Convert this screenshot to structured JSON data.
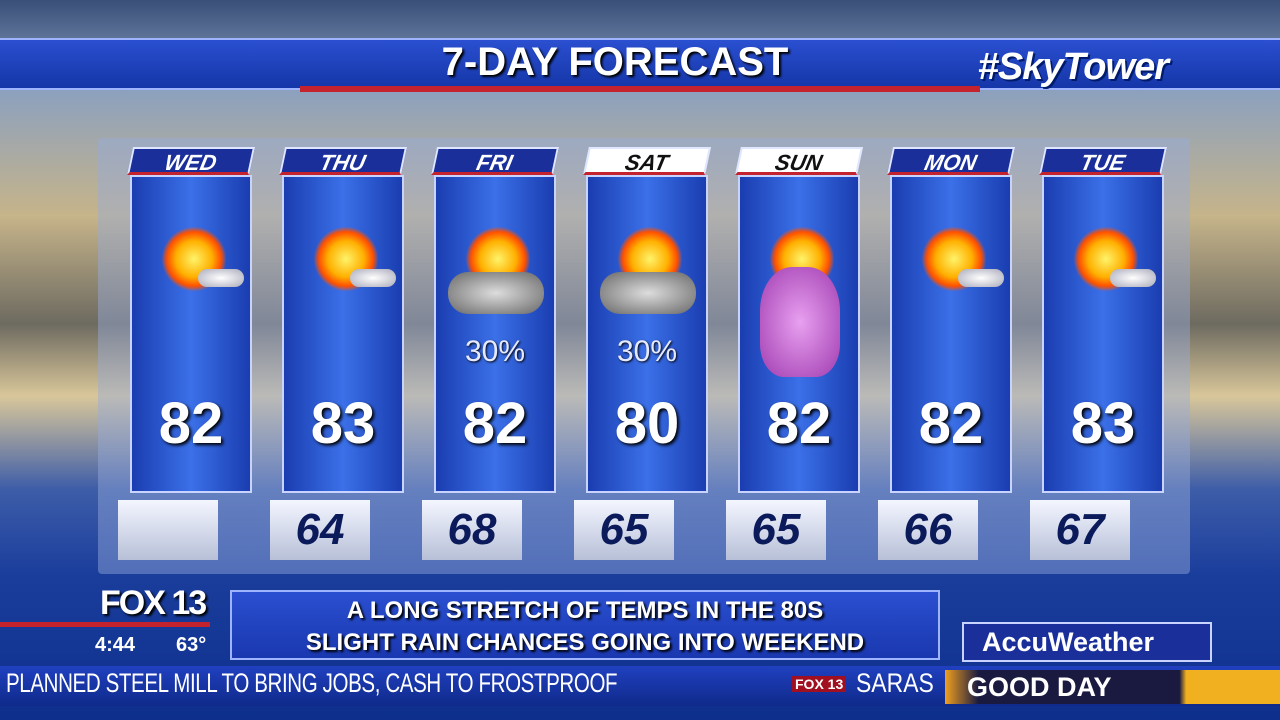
{
  "header": {
    "title": "7-DAY FORECAST",
    "hashtag": "#SkyTower"
  },
  "forecast": [
    {
      "day": "WED",
      "high": "82",
      "low": "",
      "pop": "",
      "icon": "sun-cloud-icon",
      "weekend": false
    },
    {
      "day": "THU",
      "high": "83",
      "low": "64",
      "pop": "",
      "icon": "sun-cloud-icon",
      "weekend": false
    },
    {
      "day": "FRI",
      "high": "82",
      "low": "68",
      "pop": "30%",
      "icon": "rain-cloud-sun-icon",
      "weekend": false
    },
    {
      "day": "SAT",
      "high": "80",
      "low": "65",
      "pop": "30%",
      "icon": "rain-cloud-sun-icon",
      "weekend": true
    },
    {
      "day": "SUN",
      "high": "82",
      "low": "65",
      "pop": "",
      "icon": "easter-bunny-icon",
      "weekend": true
    },
    {
      "day": "MON",
      "high": "82",
      "low": "66",
      "pop": "",
      "icon": "sun-cloud-icon",
      "weekend": false
    },
    {
      "day": "TUE",
      "high": "83",
      "low": "67",
      "pop": "",
      "icon": "sun-cloud-icon",
      "weekend": false
    }
  ],
  "station": {
    "logo": "FOX 13",
    "time": "4:44",
    "temp": "63°"
  },
  "message": {
    "line1": "A LONG STRETCH OF TEMPS IN THE 80S",
    "line2": "SLIGHT RAIN CHANCES GOING INTO WEEKEND"
  },
  "sponsor": "AccuWeather",
  "ticker": {
    "headline": "PLANNED STEEL MILL TO BRING JOBS, CASH TO FROSTPROOF",
    "logo": "FOX 13",
    "next": "SARAS",
    "show": "GOOD DAY"
  },
  "colors": {
    "accent_red": "#c4222c",
    "bar_blue": "#1a38b0"
  }
}
